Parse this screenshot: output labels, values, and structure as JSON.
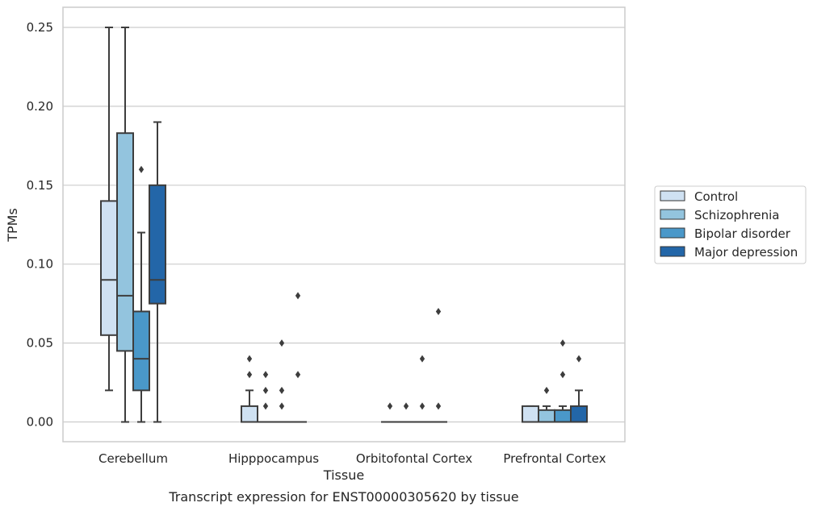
{
  "caption": "Transcript expression for ENST00000305620 by tissue",
  "chart_data": {
    "type": "box",
    "title": "",
    "xlabel": "Tissue",
    "ylabel": "TPMs",
    "ylim": [
      -0.012,
      0.263
    ],
    "yticks": [
      "0.00",
      "0.05",
      "0.10",
      "0.15",
      "0.20",
      "0.25"
    ],
    "grid": "horizontal",
    "legend_position": "right",
    "categories": [
      "Cerebellum",
      "Hipppocampus",
      "Orbitofontal Cortex",
      "Prefrontal Cortex"
    ],
    "series": [
      {
        "name": "Control",
        "color": "#cfe1f2",
        "boxes": [
          {
            "q1": 0.055,
            "median": 0.09,
            "q3": 0.14,
            "whisker_low": 0.02,
            "whisker_high": 0.25,
            "outliers": []
          },
          {
            "q1": 0.0,
            "median": 0.0,
            "q3": 0.01,
            "whisker_low": 0.0,
            "whisker_high": 0.02,
            "outliers": [
              0.03,
              0.04
            ]
          },
          {
            "q1": 0.0,
            "median": 0.0,
            "q3": 0.0,
            "whisker_low": 0.0,
            "whisker_high": 0.0,
            "outliers": [
              0.01
            ]
          },
          {
            "q1": 0.0,
            "median": 0.0,
            "q3": 0.01,
            "whisker_low": 0.0,
            "whisker_high": 0.01,
            "outliers": []
          }
        ]
      },
      {
        "name": "Schizophrenia",
        "color": "#93c4de",
        "boxes": [
          {
            "q1": 0.045,
            "median": 0.08,
            "q3": 0.183,
            "whisker_low": 0.0,
            "whisker_high": 0.25,
            "outliers": []
          },
          {
            "q1": 0.0,
            "median": 0.0,
            "q3": 0.0,
            "whisker_low": 0.0,
            "whisker_high": 0.0,
            "outliers": [
              0.01,
              0.02,
              0.03
            ]
          },
          {
            "q1": 0.0,
            "median": 0.0,
            "q3": 0.0,
            "whisker_low": 0.0,
            "whisker_high": 0.0,
            "outliers": [
              0.01
            ]
          },
          {
            "q1": 0.0,
            "median": 0.0,
            "q3": 0.0075,
            "whisker_low": 0.0,
            "whisker_high": 0.01,
            "outliers": [
              0.02
            ]
          }
        ]
      },
      {
        "name": "Bipolar disorder",
        "color": "#4a98c9",
        "boxes": [
          {
            "q1": 0.02,
            "median": 0.04,
            "q3": 0.07,
            "whisker_low": 0.0,
            "whisker_high": 0.12,
            "outliers": [
              0.16
            ]
          },
          {
            "q1": 0.0,
            "median": 0.0,
            "q3": 0.0,
            "whisker_low": 0.0,
            "whisker_high": 0.0,
            "outliers": [
              0.01,
              0.02,
              0.05
            ]
          },
          {
            "q1": 0.0,
            "median": 0.0,
            "q3": 0.0,
            "whisker_low": 0.0,
            "whisker_high": 0.0,
            "outliers": [
              0.01,
              0.04
            ]
          },
          {
            "q1": 0.0,
            "median": 0.0,
            "q3": 0.0075,
            "whisker_low": 0.0,
            "whisker_high": 0.01,
            "outliers": [
              0.03,
              0.05
            ]
          }
        ]
      },
      {
        "name": "Major depression",
        "color": "#2366a8",
        "boxes": [
          {
            "q1": 0.075,
            "median": 0.09,
            "q3": 0.15,
            "whisker_low": 0.0,
            "whisker_high": 0.19,
            "outliers": []
          },
          {
            "q1": 0.0,
            "median": 0.0,
            "q3": 0.0,
            "whisker_low": 0.0,
            "whisker_high": 0.0,
            "outliers": [
              0.03,
              0.08
            ]
          },
          {
            "q1": 0.0,
            "median": 0.0,
            "q3": 0.0,
            "whisker_low": 0.0,
            "whisker_high": 0.0,
            "outliers": [
              0.01,
              0.07
            ]
          },
          {
            "q1": 0.0,
            "median": 0.0,
            "q3": 0.01,
            "whisker_low": 0.0,
            "whisker_high": 0.02,
            "outliers": [
              0.04
            ]
          }
        ]
      }
    ]
  }
}
